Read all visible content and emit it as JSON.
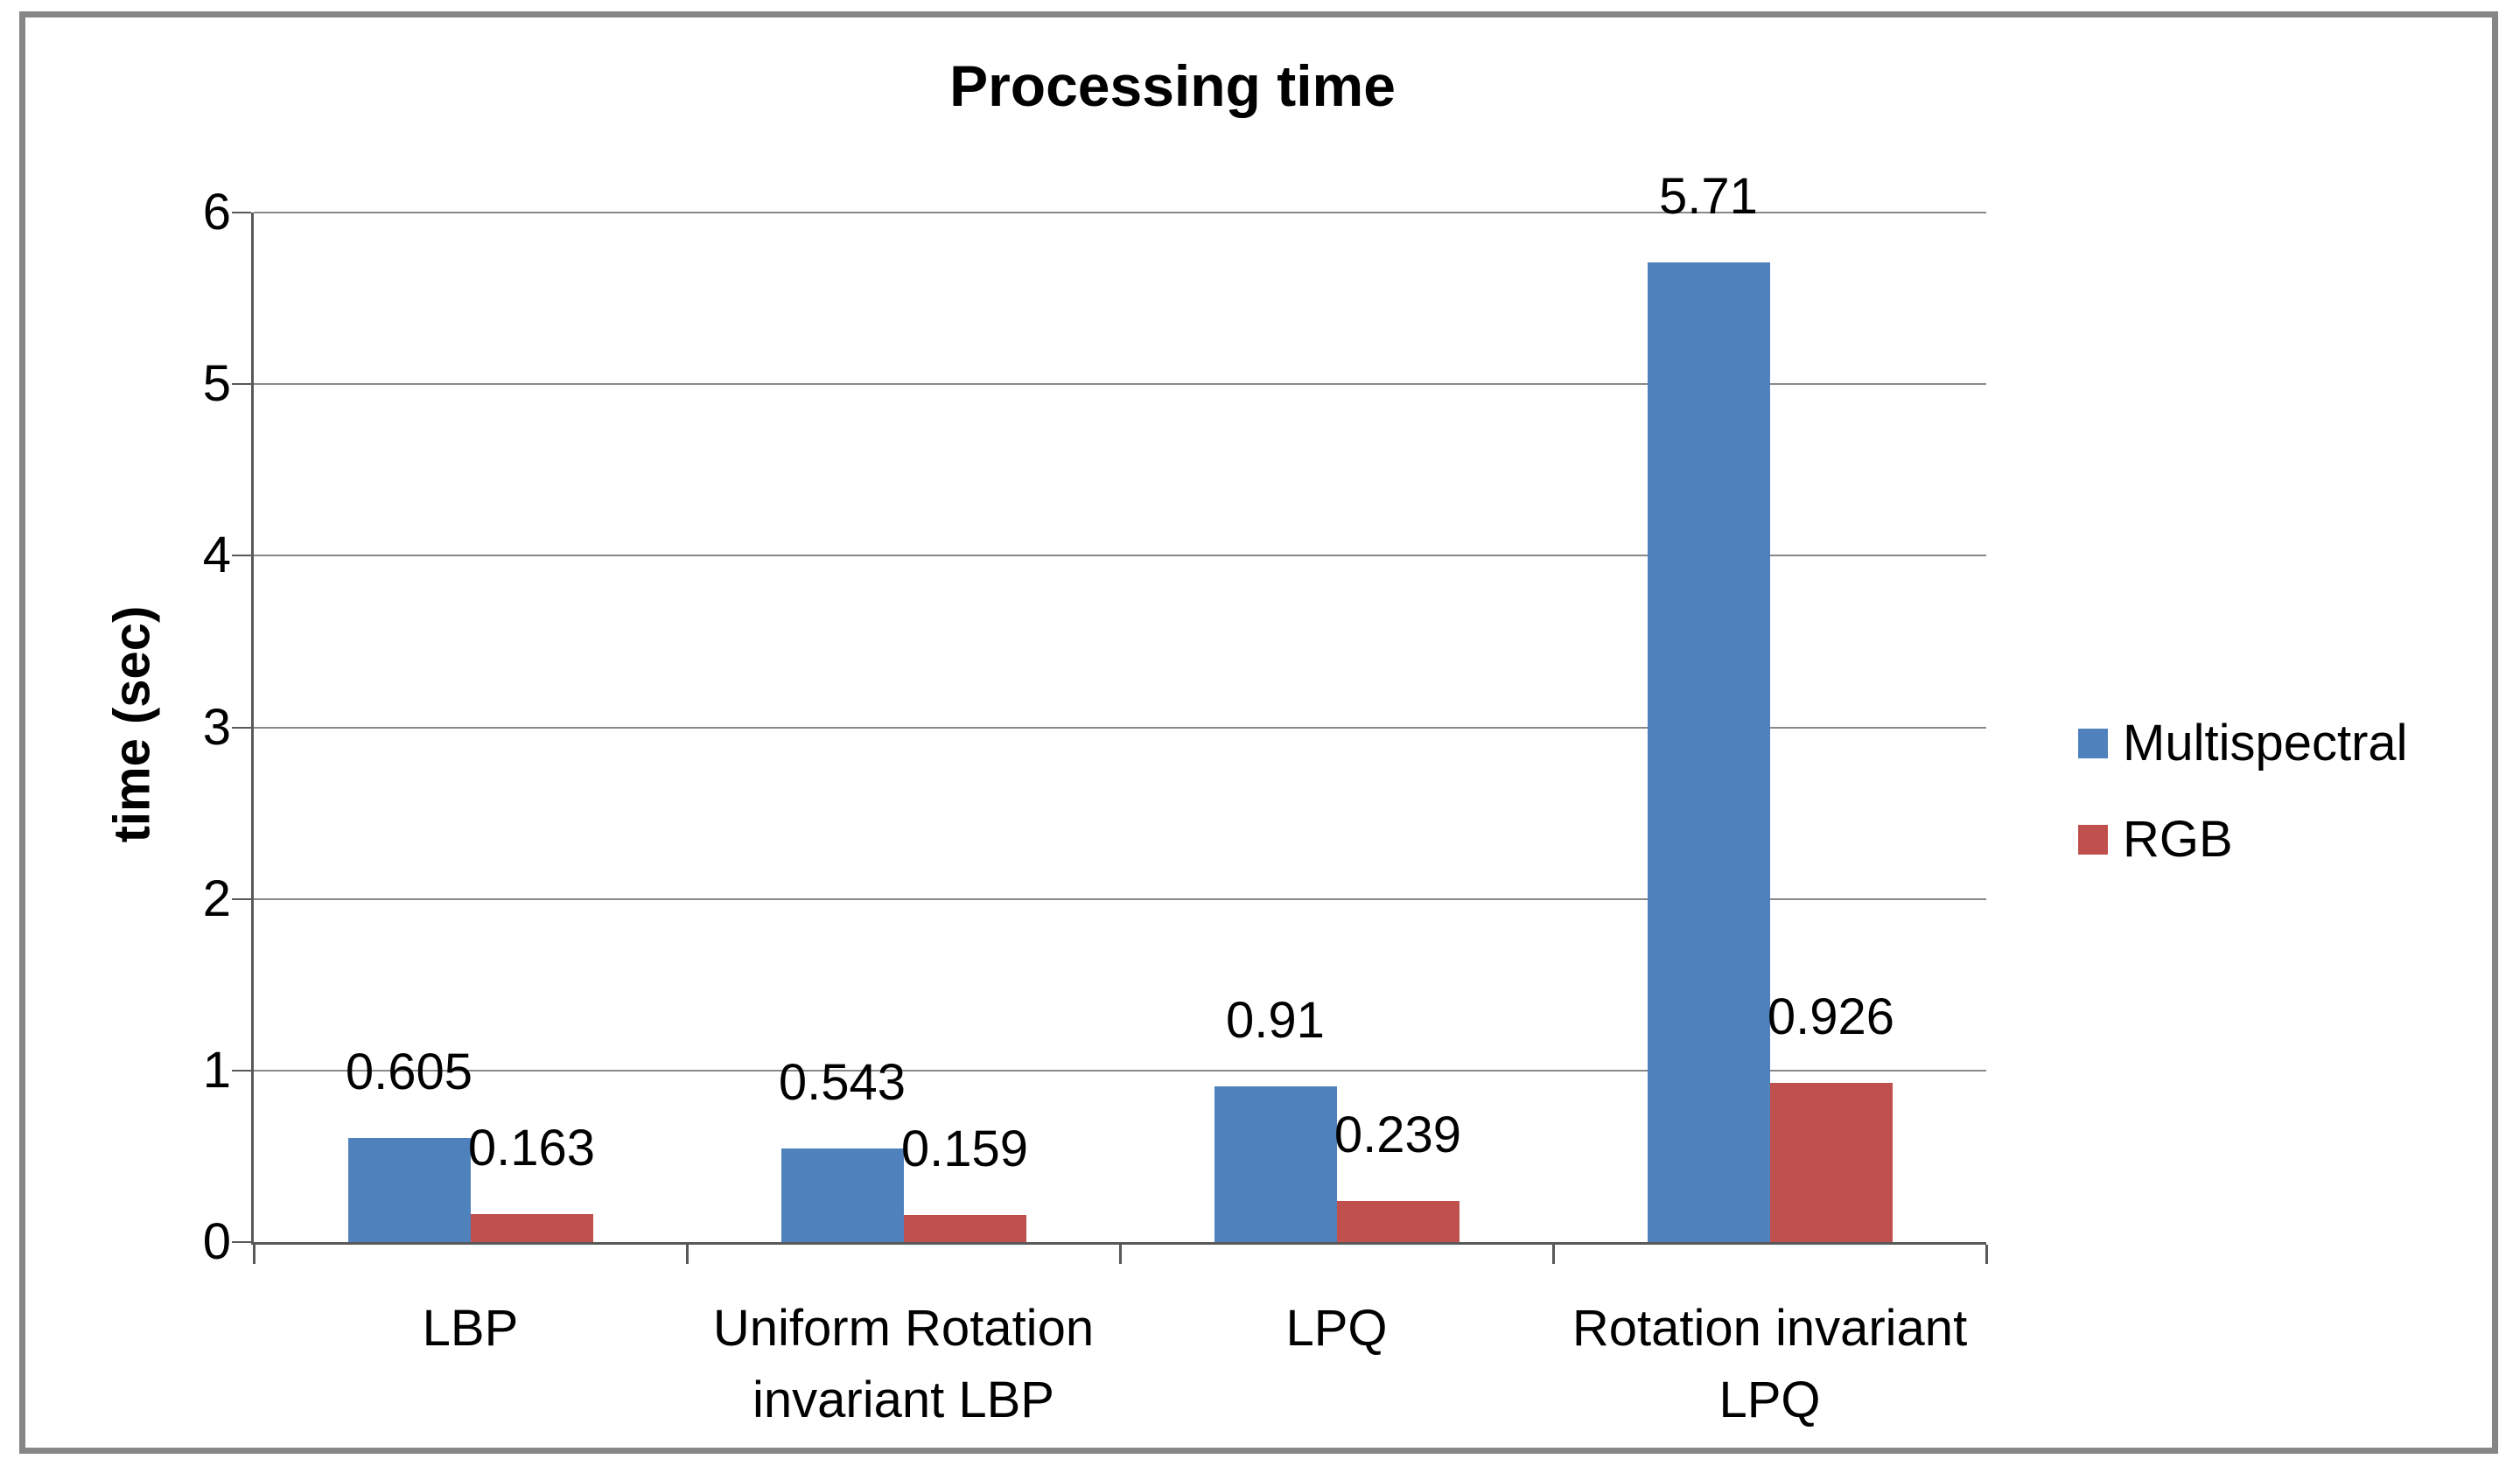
{
  "figure": {
    "border_color": "#868686",
    "background": "#ffffff"
  },
  "chart_data": {
    "type": "bar",
    "title": "Processing time",
    "xlabel": "",
    "ylabel": "time (sec)",
    "ylim": [
      0,
      6
    ],
    "yticks": [
      "0",
      "1",
      "2",
      "3",
      "4",
      "5",
      "6"
    ],
    "grid": true,
    "legend_position": "right",
    "categories": [
      "LBP",
      "Uniform Rotation invariant LBP",
      "LPQ",
      "Rotation invariant LPQ"
    ],
    "category_lines": [
      [
        "LBP"
      ],
      [
        "Uniform Rotation",
        "invariant LBP"
      ],
      [
        "LPQ"
      ],
      [
        "Rotation invariant",
        "LPQ"
      ]
    ],
    "series": [
      {
        "name": "Multispectral",
        "color": "#4F81BD",
        "values": [
          0.605,
          0.543,
          0.91,
          5.71
        ],
        "labels": [
          "0.605",
          "0.543",
          "0.91",
          "5.71"
        ]
      },
      {
        "name": "RGB",
        "color": "#C0504D",
        "values": [
          0.163,
          0.159,
          0.239,
          0.926
        ],
        "labels": [
          "0.163",
          "0.159",
          "0.239",
          "0.926"
        ]
      }
    ],
    "axis_color": "#595959",
    "gridline_color": "#898989"
  }
}
